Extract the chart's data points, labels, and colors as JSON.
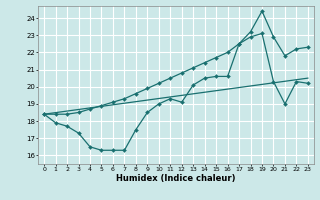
{
  "xlabel": "Humidex (Indice chaleur)",
  "bg_color": "#cce8e8",
  "grid_color": "#ffffff",
  "line_color": "#1a7070",
  "xlim": [
    -0.5,
    23.5
  ],
  "ylim": [
    15.5,
    24.7
  ],
  "yticks": [
    16,
    17,
    18,
    19,
    20,
    21,
    22,
    23,
    24
  ],
  "xticks": [
    0,
    1,
    2,
    3,
    4,
    5,
    6,
    7,
    8,
    9,
    10,
    11,
    12,
    13,
    14,
    15,
    16,
    17,
    18,
    19,
    20,
    21,
    22,
    23
  ],
  "line1_x": [
    0,
    1,
    2,
    3,
    4,
    5,
    6,
    7,
    8,
    9,
    10,
    11,
    12,
    13,
    14,
    15,
    16,
    17,
    18,
    19,
    20,
    21,
    22,
    23
  ],
  "line1_y": [
    18.4,
    17.9,
    17.7,
    17.3,
    16.5,
    16.3,
    16.3,
    16.3,
    17.5,
    18.5,
    19.0,
    19.3,
    19.1,
    20.1,
    20.5,
    20.6,
    20.6,
    22.5,
    22.9,
    23.1,
    20.3,
    19.0,
    20.3,
    20.2
  ],
  "line2_x": [
    0,
    23
  ],
  "line2_y": [
    18.4,
    20.5
  ],
  "line3_x": [
    0,
    1,
    2,
    3,
    4,
    5,
    6,
    7,
    8,
    9,
    10,
    11,
    12,
    13,
    14,
    15,
    16,
    17,
    18,
    19,
    20,
    21,
    22,
    23
  ],
  "line3_y": [
    18.4,
    18.4,
    18.4,
    18.5,
    18.7,
    18.9,
    19.1,
    19.3,
    19.6,
    19.9,
    20.2,
    20.5,
    20.8,
    21.1,
    21.4,
    21.7,
    22.0,
    22.5,
    23.2,
    24.4,
    22.9,
    21.8,
    22.2,
    22.3
  ]
}
